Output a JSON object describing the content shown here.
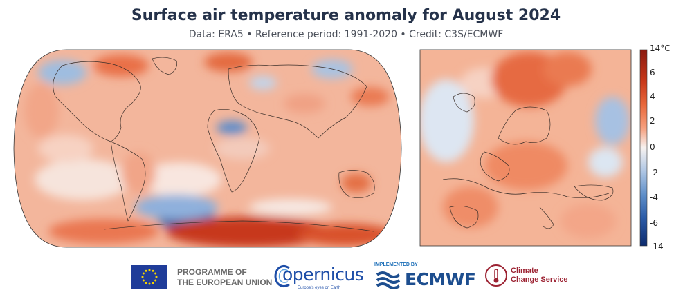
{
  "header": {
    "title": "Surface air temperature anomaly for August 2024",
    "subtitle": "Data: ERA5 • Reference period: 1991-2020 • Credit: C3S/ECMWF"
  },
  "maps": {
    "global": {
      "projection": "robinson",
      "region": "world"
    },
    "inset": {
      "region": "europe"
    }
  },
  "colorbar": {
    "ticks": [
      "14°C",
      "6",
      "4",
      "2",
      "0",
      "-2",
      "-4",
      "-6",
      "-14"
    ],
    "tick_values": [
      14,
      6,
      4,
      2,
      0,
      -2,
      -4,
      -6,
      -14
    ],
    "colors": {
      "14": "#8a1a10",
      "6": "#d8471c",
      "4": "#ef7a4e",
      "2": "#f7b59b",
      "0": "#f7f2f0",
      "-2": "#aec6e4",
      "-4": "#5f8fc9",
      "-6": "#2a5aa6",
      "-14": "#0e2b6e"
    }
  },
  "logos": {
    "eu": {
      "line1": "PROGRAMME OF",
      "line2": "THE EUROPEAN UNION",
      "icon": "eu-flag-icon"
    },
    "copernicus": {
      "word": "opernicus",
      "tagline": "Europe's eyes on Earth",
      "icon": "copernicus-c-icon"
    },
    "ecmwf": {
      "implemented": "IMPLEMENTED BY",
      "word": "ECMWF",
      "icon": "ecmwf-waves-icon"
    },
    "c3s": {
      "line1": "Climate",
      "line2": "Change Service",
      "icon": "thermometer-icon"
    }
  }
}
